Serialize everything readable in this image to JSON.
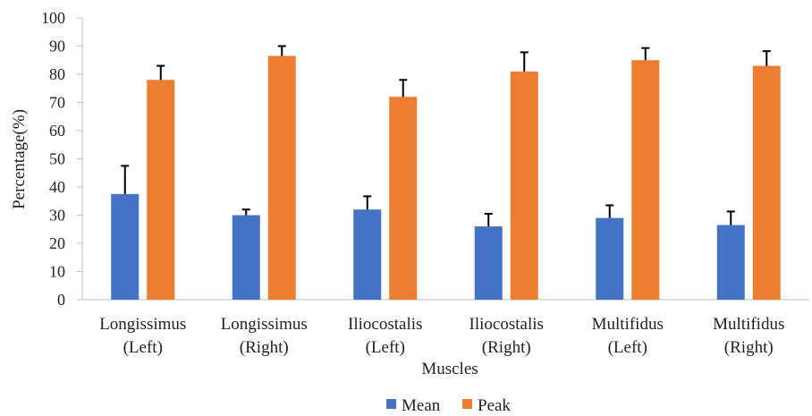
{
  "chart_data": {
    "type": "bar",
    "categories": [
      [
        "Longissimus",
        "(Left)"
      ],
      [
        "Longissimus",
        "(Right)"
      ],
      [
        "Iliocostalis",
        "(Left)"
      ],
      [
        "Iliocostalis",
        "(Right)"
      ],
      [
        "Multifidus",
        "(Left)"
      ],
      [
        "Multifidus",
        "(Right)"
      ]
    ],
    "series": [
      {
        "name": "Mean",
        "color": "#4472C4",
        "values": [
          37.5,
          30.0,
          32.0,
          26.0,
          29.0,
          26.5
        ],
        "error": [
          10.0,
          2.0,
          4.7,
          4.5,
          4.5,
          4.8
        ]
      },
      {
        "name": "Peak",
        "color": "#ED7D31",
        "values": [
          78.0,
          86.5,
          72.0,
          81.0,
          85.0,
          83.0
        ],
        "error": [
          5.0,
          3.5,
          6.0,
          6.8,
          4.3,
          5.2
        ]
      }
    ],
    "xlabel": "Muscles",
    "ylabel": "Percentage(%)",
    "ylim": [
      0,
      100
    ],
    "yticks": [
      0,
      10,
      20,
      30,
      40,
      50,
      60,
      70,
      80,
      90,
      100
    ],
    "grid": false,
    "legend": "bottom",
    "error_bar_color": "#000000"
  }
}
